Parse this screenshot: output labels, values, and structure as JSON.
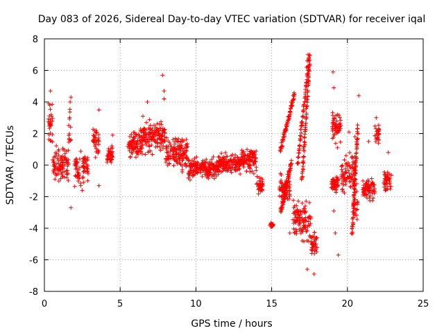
{
  "chart_data": {
    "type": "scatter",
    "title": "Day 083 of 2026, Sidereal Day-to-day VTEC variation (SDTVAR) for receiver iqal",
    "xlabel": "GPS time / hours",
    "ylabel": "SDTVAR / TECUs",
    "xlim": [
      0,
      25
    ],
    "ylim": [
      -8,
      8
    ],
    "xticks": [
      0,
      5,
      10,
      15,
      20,
      25
    ],
    "yticks": [
      -8,
      -6,
      -4,
      -2,
      0,
      2,
      4,
      6,
      8
    ],
    "grid": true,
    "marker": "+",
    "series_color": "#ff0000",
    "series": [
      {
        "name": "SDTVAR",
        "segments": [
          {
            "x0": 0.25,
            "x1": 0.55,
            "center": 2.5,
            "spread": 1.8
          },
          {
            "x0": 0.55,
            "x1": 1.6,
            "center": 0.0,
            "spread": 1.6
          },
          {
            "x0": 1.6,
            "x1": 1.75,
            "center": 2.2,
            "spread": 2.0
          },
          {
            "x0": 2.0,
            "x1": 2.4,
            "center": -0.3,
            "spread": 1.5
          },
          {
            "x0": 2.5,
            "x1": 2.9,
            "center": -0.2,
            "spread": 1.2
          },
          {
            "x0": 3.2,
            "x1": 3.6,
            "center": 1.6,
            "spread": 1.4
          },
          {
            "x0": 4.1,
            "x1": 4.5,
            "center": 0.5,
            "spread": 0.8
          },
          {
            "x0": 5.5,
            "x1": 6.5,
            "center": 1.3,
            "spread": 1.2
          },
          {
            "x0": 6.5,
            "x1": 8.0,
            "center": 1.8,
            "spread": 1.4
          },
          {
            "x0": 8.0,
            "x1": 9.5,
            "center": 0.8,
            "spread": 1.3
          },
          {
            "x0": 9.5,
            "x1": 11.5,
            "center": -0.2,
            "spread": 0.9
          },
          {
            "x0": 11.5,
            "x1": 13.0,
            "center": 0.1,
            "spread": 0.9
          },
          {
            "x0": 13.0,
            "x1": 14.0,
            "center": 0.3,
            "spread": 1.0
          },
          {
            "x0": 14.0,
            "x1": 14.4,
            "center": -1.3,
            "spread": 0.8
          },
          {
            "x0": 14.9,
            "x1": 15.1,
            "center": -3.8,
            "spread": 0.2
          },
          {
            "x0": 15.5,
            "x1": 16.2,
            "center": -1.5,
            "spread": 1.2
          },
          {
            "x0": 16.4,
            "x1": 17.6,
            "center": -3.5,
            "spread": 1.8
          },
          {
            "x0": 17.6,
            "x1": 18.0,
            "center": -5.0,
            "spread": 1.0
          },
          {
            "x0": 18.9,
            "x1": 19.4,
            "center": -1.2,
            "spread": 0.6
          },
          {
            "x0": 19.0,
            "x1": 19.6,
            "center": 2.5,
            "spread": 1.8
          },
          {
            "x0": 19.6,
            "x1": 20.5,
            "center": -0.5,
            "spread": 1.6
          },
          {
            "x0": 20.4,
            "x1": 20.7,
            "center": -2.5,
            "spread": 1.5
          },
          {
            "x0": 21.0,
            "x1": 21.8,
            "center": -1.5,
            "spread": 0.9
          },
          {
            "x0": 21.8,
            "x1": 22.1,
            "center": 2.0,
            "spread": 0.9
          },
          {
            "x0": 22.4,
            "x1": 22.9,
            "center": -1.0,
            "spread": 1.0
          }
        ],
        "traces": [
          {
            "x0": 15.55,
            "y0": 0.8,
            "x1": 16.5,
            "y1": 4.5
          },
          {
            "x0": 16.7,
            "y0": 0.0,
            "x1": 17.5,
            "y1": 7.0
          },
          {
            "x0": 17.0,
            "y0": -1.0,
            "x1": 17.5,
            "y1": 6.5
          },
          {
            "x0": 15.6,
            "y0": -3.0,
            "x1": 16.3,
            "y1": 0.2
          },
          {
            "x0": 20.3,
            "y0": -4.4,
            "x1": 20.7,
            "y1": 2.5
          }
        ],
        "sample_points": [
          [
            0.4,
            4.7
          ],
          [
            0.35,
            3.8
          ],
          [
            0.45,
            3.2
          ],
          [
            1.75,
            4.3
          ],
          [
            1.7,
            4.0
          ],
          [
            1.75,
            -2.7
          ],
          [
            3.6,
            3.5
          ],
          [
            3.6,
            -1.3
          ],
          [
            7.8,
            5.7
          ],
          [
            7.9,
            4.7
          ],
          [
            7.9,
            4.2
          ],
          [
            6.8,
            4.0
          ],
          [
            6.5,
            3.1
          ],
          [
            17.4,
            7.0
          ],
          [
            17.35,
            6.6
          ],
          [
            17.3,
            6.2
          ],
          [
            17.35,
            -6.6
          ],
          [
            17.8,
            -6.9
          ],
          [
            16.5,
            4.5
          ],
          [
            16.3,
            4.0
          ],
          [
            19.05,
            5.9
          ],
          [
            19.1,
            4.9
          ],
          [
            19.1,
            -2.9
          ],
          [
            19.2,
            -4.3
          ],
          [
            19.4,
            -5.7
          ],
          [
            20.75,
            4.4
          ],
          [
            21.9,
            3.0
          ],
          [
            21.8,
            -1.7
          ],
          [
            15.0,
            -3.9
          ],
          [
            14.9,
            -3.8
          ],
          [
            21.4,
            1.5
          ],
          [
            20.1,
            2.1
          ],
          [
            20.5,
            1.8
          ],
          [
            22.7,
            0.8
          ],
          [
            2.5,
            -1.6
          ],
          [
            4.5,
            1.9
          ],
          [
            9.1,
            -0.3
          ],
          [
            13.0,
            0.5
          ],
          [
            13.6,
            0.7
          ],
          [
            16.2,
            -4.3
          ]
        ]
      }
    ]
  }
}
